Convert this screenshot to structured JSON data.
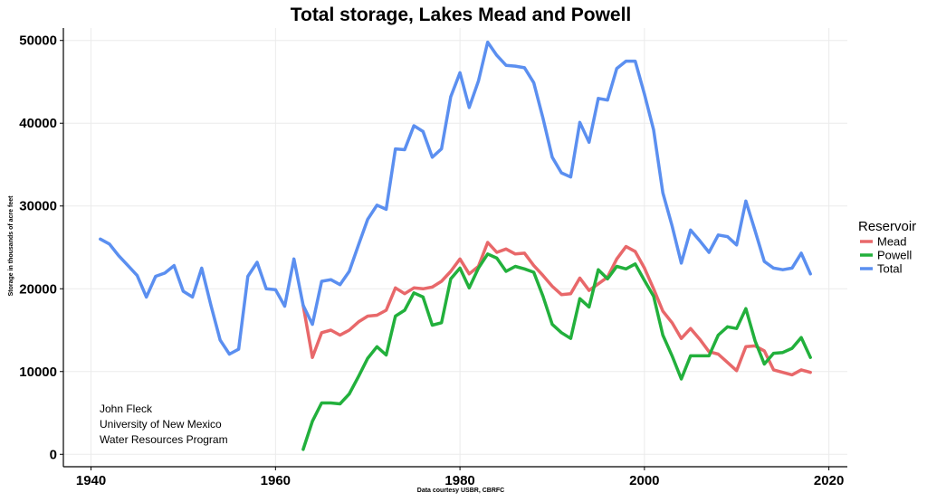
{
  "chart_data": {
    "type": "line",
    "title": "Total storage, Lakes Mead and Powell",
    "xlabel": "Data courtesy USBR, CBRFC",
    "ylabel": "Storage in thousands of acre feet",
    "xlim": [
      1937,
      2022
    ],
    "ylim": [
      -1500,
      51500
    ],
    "x_ticks": [
      1940,
      1960,
      1980,
      2000,
      2020
    ],
    "y_ticks": [
      0,
      10000,
      20000,
      30000,
      40000,
      50000
    ],
    "grid": true,
    "legend": {
      "title": "Reservoir",
      "position": "right"
    },
    "annotation": [
      "John Fleck",
      "University of New Mexico",
      "Water Resources Program"
    ],
    "series": [
      {
        "name": "Mead",
        "color": "#e8686a",
        "x": [
          1963,
          1964,
          1965,
          1966,
          1967,
          1968,
          1969,
          1970,
          1971,
          1972,
          1973,
          1974,
          1975,
          1976,
          1977,
          1978,
          1979,
          1980,
          1981,
          1982,
          1983,
          1984,
          1985,
          1986,
          1987,
          1988,
          1989,
          1990,
          1991,
          1992,
          1993,
          1994,
          1995,
          1996,
          1997,
          1998,
          1999,
          2000,
          2001,
          2002,
          2003,
          2004,
          2005,
          2006,
          2007,
          2008,
          2009,
          2010,
          2011,
          2012,
          2013,
          2014,
          2015,
          2016,
          2017,
          2018
        ],
        "values": [
          18000,
          11700,
          14700,
          15000,
          14400,
          15000,
          16000,
          16700,
          16800,
          17400,
          20100,
          19400,
          20100,
          20000,
          20200,
          20900,
          22100,
          23600,
          21800,
          22700,
          25600,
          24400,
          24800,
          24200,
          24300,
          22800,
          21600,
          20300,
          19300,
          19400,
          21300,
          19800,
          20600,
          21400,
          23600,
          25100,
          24500,
          22500,
          20000,
          17300,
          15900,
          14000,
          15200,
          13900,
          12400,
          12100,
          11100,
          10100,
          13000,
          13100,
          12500,
          10200,
          9900,
          9600,
          10200,
          9900
        ]
      },
      {
        "name": "Powell",
        "color": "#22b03c",
        "x": [
          1963,
          1964,
          1965,
          1966,
          1967,
          1968,
          1969,
          1970,
          1971,
          1972,
          1973,
          1974,
          1975,
          1976,
          1977,
          1978,
          1979,
          1980,
          1981,
          1982,
          1983,
          1984,
          1985,
          1986,
          1987,
          1988,
          1989,
          1990,
          1991,
          1992,
          1993,
          1994,
          1995,
          1996,
          1997,
          1998,
          1999,
          2000,
          2001,
          2002,
          2003,
          2004,
          2005,
          2006,
          2007,
          2008,
          2009,
          2010,
          2011,
          2012,
          2013,
          2014,
          2015,
          2016,
          2017,
          2018
        ],
        "values": [
          600,
          4000,
          6200,
          6200,
          6100,
          7300,
          9400,
          11600,
          13000,
          12000,
          16700,
          17400,
          19500,
          19000,
          15600,
          15900,
          21200,
          22500,
          20100,
          22500,
          24200,
          23700,
          22100,
          22700,
          22400,
          22000,
          19100,
          15700,
          14700,
          14000,
          18800,
          17800,
          22300,
          21200,
          22700,
          22400,
          23000,
          21000,
          19100,
          14400,
          11900,
          9100,
          11900,
          11900,
          11900,
          14400,
          15400,
          15200,
          17600,
          13700,
          10900,
          12200,
          12300,
          12800,
          14100,
          11700
        ]
      },
      {
        "name": "Total",
        "color": "#5b8ff0",
        "x": [
          1941,
          1942,
          1943,
          1944,
          1945,
          1946,
          1947,
          1948,
          1949,
          1950,
          1951,
          1952,
          1953,
          1954,
          1955,
          1956,
          1957,
          1958,
          1959,
          1960,
          1961,
          1962,
          1963,
          1964,
          1965,
          1966,
          1967,
          1968,
          1969,
          1970,
          1971,
          1972,
          1973,
          1974,
          1975,
          1976,
          1977,
          1978,
          1979,
          1980,
          1981,
          1982,
          1983,
          1984,
          1985,
          1986,
          1987,
          1988,
          1989,
          1990,
          1991,
          1992,
          1993,
          1994,
          1995,
          1996,
          1997,
          1998,
          1999,
          2000,
          2001,
          2002,
          2003,
          2004,
          2005,
          2006,
          2007,
          2008,
          2009,
          2010,
          2011,
          2012,
          2013,
          2014,
          2015,
          2016,
          2017,
          2018
        ],
        "values": [
          26000,
          25400,
          24000,
          22800,
          21600,
          19000,
          21500,
          21900,
          22800,
          19700,
          19000,
          22500,
          18000,
          13800,
          12100,
          12700,
          21500,
          23200,
          20000,
          19900,
          17900,
          23600,
          18000,
          15700,
          20900,
          21100,
          20500,
          22100,
          25300,
          28400,
          30100,
          29600,
          36900,
          36800,
          39700,
          39000,
          35900,
          36900,
          43200,
          46100,
          41900,
          45100,
          49800,
          48200,
          47000,
          46900,
          46700,
          44900,
          40600,
          35900,
          34000,
          33500,
          40100,
          37700,
          43000,
          42800,
          46600,
          47500,
          47500,
          43500,
          39200,
          31600,
          27600,
          23100,
          27100,
          25800,
          24400,
          26500,
          26300,
          25300,
          30600,
          27000,
          23300,
          22500,
          22300,
          22500,
          24300,
          21800
        ]
      }
    ]
  }
}
